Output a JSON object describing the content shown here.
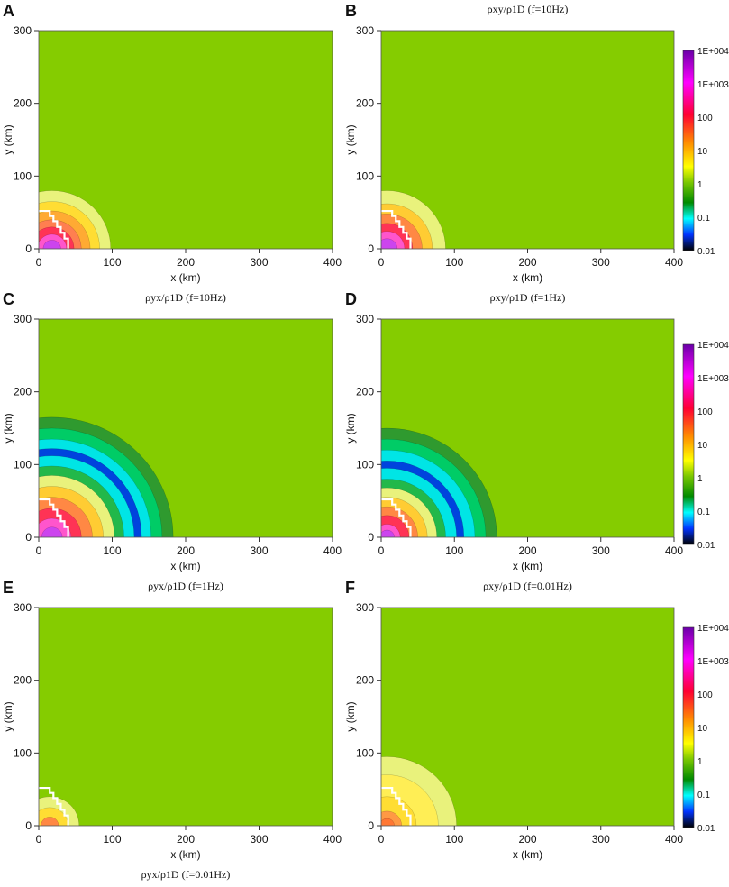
{
  "figure": {
    "colorbar_ticks": [
      "1E+004",
      "1E+003",
      "100",
      "10",
      "1",
      "0.1",
      "0.01"
    ],
    "colorbar_stops": [
      "#6a00a8",
      "#ff00ff",
      "#ff0033",
      "#ff8c00",
      "#ffff00",
      "#7ac700",
      "#008a00",
      "#00ffff",
      "#0033ff",
      "#000000"
    ]
  },
  "chart_data": [
    {
      "panel": "A",
      "type": "heatmap",
      "title": "",
      "xlabel": "x (km)",
      "ylabel": "y (km)",
      "xlim": [
        0,
        400
      ],
      "ylim": [
        0,
        300
      ],
      "xticks": [
        "0",
        "100",
        "200",
        "300",
        "400"
      ],
      "yticks": [
        "0",
        "100",
        "200",
        "300"
      ],
      "background_value": "1",
      "colorscale": "log",
      "colorbar": false
    },
    {
      "panel": "B",
      "type": "heatmap",
      "title": "ρxy/ρ1D (f=10Hz)",
      "xlabel": "x (km)",
      "ylabel": "y (km)",
      "xlim": [
        0,
        400
      ],
      "ylim": [
        0,
        300
      ],
      "xticks": [
        "0",
        "100",
        "200",
        "300",
        "400"
      ],
      "yticks": [
        "0",
        "100",
        "200",
        "300"
      ],
      "background_value": "1",
      "colorscale": "log",
      "colorbar": true
    },
    {
      "panel": "C",
      "type": "heatmap",
      "title": "ρyx/ρ1D (f=10Hz)",
      "xlabel": "x (km)",
      "ylabel": "y (km)",
      "xlim": [
        0,
        400
      ],
      "ylim": [
        0,
        300
      ],
      "xticks": [
        "0",
        "100",
        "200",
        "300",
        "400"
      ],
      "yticks": [
        "0",
        "100",
        "200",
        "300"
      ],
      "background_value": "1",
      "colorscale": "log",
      "colorbar": false
    },
    {
      "panel": "D",
      "type": "heatmap",
      "title": "ρxy/ρ1D (f=1Hz)",
      "xlabel": "x (km)",
      "ylabel": "y (km)",
      "xlim": [
        0,
        400
      ],
      "ylim": [
        0,
        300
      ],
      "xticks": [
        "0",
        "100",
        "200",
        "300",
        "400"
      ],
      "yticks": [
        "0",
        "100",
        "200",
        "300"
      ],
      "background_value": "1",
      "colorscale": "log",
      "colorbar": true
    },
    {
      "panel": "E",
      "type": "heatmap",
      "title": "ρyx/ρ1D (f=1Hz)",
      "xlabel": "x (km)",
      "ylabel": "y (km)",
      "xlim": [
        0,
        400
      ],
      "ylim": [
        0,
        300
      ],
      "xticks": [
        "0",
        "100",
        "200",
        "300",
        "400"
      ],
      "yticks": [
        "0",
        "100",
        "200",
        "300"
      ],
      "background_value": "1",
      "colorscale": "log",
      "colorbar": false
    },
    {
      "panel": "F",
      "type": "heatmap",
      "title": "ρxy/ρ1D (f=0.01Hz)",
      "xlabel": "x (km)",
      "ylabel": "y (km)",
      "xlim": [
        0,
        400
      ],
      "ylim": [
        0,
        300
      ],
      "xticks": [
        "0",
        "100",
        "200",
        "300",
        "400"
      ],
      "yticks": [
        "0",
        "100",
        "200",
        "300"
      ],
      "background_value": "1",
      "colorscale": "log",
      "colorbar": true
    }
  ],
  "footer_caption": "ρyx/ρ1D (f=0.01Hz)"
}
